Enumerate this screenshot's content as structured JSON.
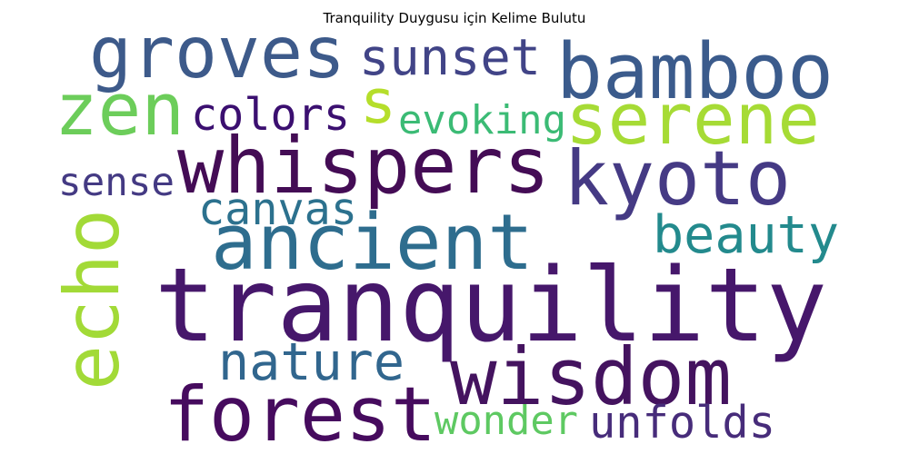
{
  "chart_data": {
    "type": "wordcloud",
    "title": "Tranquility Duygusu için Kelime Bulutu",
    "colormap": "viridis",
    "words": [
      {
        "text": "tranquility",
        "color": "#46176b"
      },
      {
        "text": "whispers",
        "color": "#440c55"
      },
      {
        "text": "ancient",
        "color": "#2e6d8e"
      },
      {
        "text": "bamboo",
        "color": "#3b5b8c"
      },
      {
        "text": "groves",
        "color": "#3d5a8a"
      },
      {
        "text": "kyoto",
        "color": "#453a84"
      },
      {
        "text": "serene",
        "color": "#a6db35"
      },
      {
        "text": "zen",
        "color": "#6ccd5a"
      },
      {
        "text": "echo",
        "color": "#a2da37"
      },
      {
        "text": "forest",
        "color": "#460b5e"
      },
      {
        "text": "wisdom",
        "color": "#44135f"
      },
      {
        "text": "sunset",
        "color": "#414487"
      },
      {
        "text": "s",
        "color": "#b5de2b"
      },
      {
        "text": "colors",
        "color": "#3b0f70"
      },
      {
        "text": "evoking",
        "color": "#3bbb75"
      },
      {
        "text": "sense",
        "color": "#443a83"
      },
      {
        "text": "canvas",
        "color": "#2c718e"
      },
      {
        "text": "beauty",
        "color": "#238a8d"
      },
      {
        "text": "nature",
        "color": "#31668e"
      },
      {
        "text": "wonder",
        "color": "#5ec962"
      },
      {
        "text": "unfolds",
        "color": "#472c7a"
      }
    ]
  }
}
